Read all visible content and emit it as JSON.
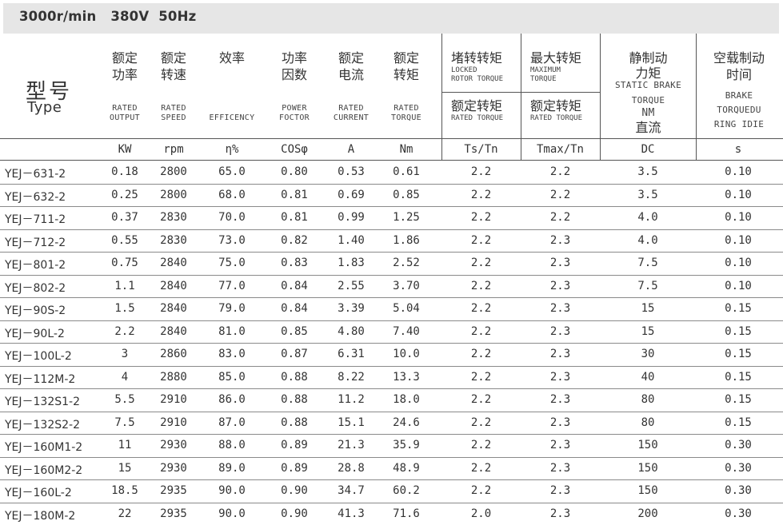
{
  "banner": {
    "title": "3000r/min   380V  50Hz"
  },
  "header": {
    "type_cn": "型号",
    "type_en": "Type",
    "columns": [
      {
        "cn1": "额定",
        "cn2": "功率",
        "en1": "RATED",
        "en2": "OUTPUT"
      },
      {
        "cn1": "额定",
        "cn2": "转速",
        "en1": "RATED",
        "en2": "SPEED"
      },
      {
        "cn1": "效率",
        "en1": "EFFICENCY"
      },
      {
        "cn1": "功率",
        "cn2": "因数",
        "en1": "POWER",
        "en2": "FOCTOR"
      },
      {
        "cn1": "额定",
        "cn2": "电流",
        "en1": "RATED",
        "en2": "CURRENT"
      },
      {
        "cn1": "额定",
        "cn2": "转矩",
        "en1": "RATED",
        "en2": "TORQUE"
      }
    ],
    "locked": {
      "top_cn": "堵转转矩",
      "top_en1": "LOCKED",
      "top_en2": "ROTOR TORQUE",
      "bot_cn": "额定转矩",
      "bot_en": "RATED TORQUE"
    },
    "maximum": {
      "top_cn": "最大转矩",
      "top_en1": "MAXIMUM",
      "top_en2": "TORQUE",
      "bot_cn": "额定转矩",
      "bot_en": "RATED TORQUE"
    },
    "static_brake": {
      "cn1": "静制动",
      "cn2": "力矩",
      "en1": "STATIC BRAKE",
      "en2": "TORQUE",
      "nm": "NM",
      "dc_cn": "直流"
    },
    "idle_brake": {
      "cn1": "空载制动",
      "cn2": "时间",
      "en1": "BRAKE",
      "en2": "TORQUEDU",
      "en3": "RING IDIE"
    },
    "units": [
      "KW",
      "rpm",
      "η%",
      "COSφ",
      "A",
      "Nm",
      "Ts/Tn",
      "Tmax/Tn",
      "DC",
      "s"
    ]
  },
  "rows": [
    [
      "YEJ－631-2",
      "0.18",
      "2800",
      "65.0",
      "0.80",
      "0.53",
      "0.61",
      "2.2",
      "2.2",
      "3.5",
      "0.10"
    ],
    [
      "YEJ－632-2",
      "0.25",
      "2800",
      "68.0",
      "0.81",
      "0.69",
      "0.85",
      "2.2",
      "2.2",
      "3.5",
      "0.10"
    ],
    [
      "YEJ－711-2",
      "0.37",
      "2830",
      "70.0",
      "0.81",
      "0.99",
      "1.25",
      "2.2",
      "2.2",
      "4.0",
      "0.10"
    ],
    [
      "YEJ－712-2",
      "0.55",
      "2830",
      "73.0",
      "0.82",
      "1.40",
      "1.86",
      "2.2",
      "2.3",
      "4.0",
      "0.10"
    ],
    [
      "YEJ－801-2",
      "0.75",
      "2840",
      "75.0",
      "0.83",
      "1.83",
      "2.52",
      "2.2",
      "2.3",
      "7.5",
      "0.10"
    ],
    [
      "YEJ－802-2",
      "1.1",
      "2840",
      "77.0",
      "0.84",
      "2.55",
      "3.70",
      "2.2",
      "2.3",
      "7.5",
      "0.10"
    ],
    [
      "YEJ－90S-2",
      "1.5",
      "2840",
      "79.0",
      "0.84",
      "3.39",
      "5.04",
      "2.2",
      "2.3",
      "15",
      "0.15"
    ],
    [
      "YEJ－90L-2",
      "2.2",
      "2840",
      "81.0",
      "0.85",
      "4.80",
      "7.40",
      "2.2",
      "2.3",
      "15",
      "0.15"
    ],
    [
      "YEJ－100L-2",
      "3",
      "2860",
      "83.0",
      "0.87",
      "6.31",
      "10.0",
      "2.2",
      "2.3",
      "30",
      "0.15"
    ],
    [
      "YEJ－112M-2",
      "4",
      "2880",
      "85.0",
      "0.88",
      "8.22",
      "13.3",
      "2.2",
      "2.3",
      "40",
      "0.15"
    ],
    [
      "YEJ－132S1-2",
      "5.5",
      "2910",
      "86.0",
      "0.88",
      "11.2",
      "18.0",
      "2.2",
      "2.3",
      "80",
      "0.15"
    ],
    [
      "YEJ－132S2-2",
      "7.5",
      "2910",
      "87.0",
      "0.88",
      "15.1",
      "24.6",
      "2.2",
      "2.3",
      "80",
      "0.15"
    ],
    [
      "YEJ－160M1-2",
      "11",
      "2930",
      "88.0",
      "0.89",
      "21.3",
      "35.9",
      "2.2",
      "2.3",
      "150",
      "0.30"
    ],
    [
      "YEJ－160M2-2",
      "15",
      "2930",
      "89.0",
      "0.89",
      "28.8",
      "48.9",
      "2.2",
      "2.3",
      "150",
      "0.30"
    ],
    [
      "YEJ－160L-2",
      "18.5",
      "2935",
      "90.0",
      "0.90",
      "34.7",
      "60.2",
      "2.2",
      "2.3",
      "150",
      "0.30"
    ],
    [
      "YEJ－180M-2",
      "22",
      "2935",
      "90.0",
      "0.90",
      "41.3",
      "71.6",
      "2.0",
      "2.3",
      "200",
      "0.30"
    ]
  ]
}
